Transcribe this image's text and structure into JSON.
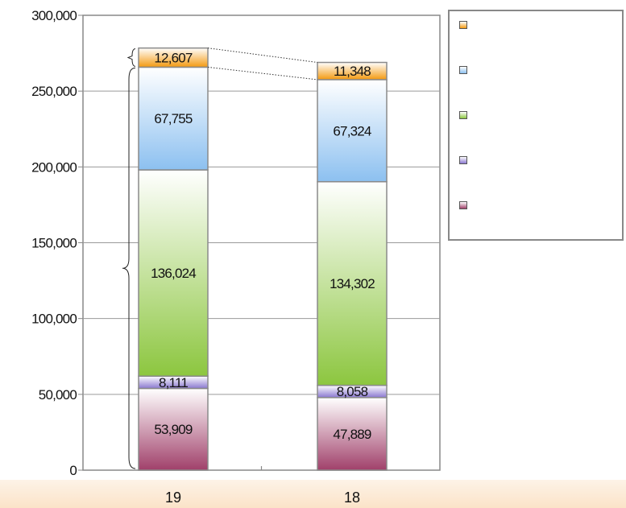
{
  "chart_data": {
    "type": "bar",
    "stacked": true,
    "categories": [
      "19",
      "18"
    ],
    "yticks": [
      "0",
      "50,000",
      "100,000",
      "150,000",
      "200,000",
      "250,000",
      "300,000"
    ],
    "ylim": [
      0,
      300000
    ],
    "grid": true,
    "legend_position": "right",
    "series": [
      {
        "values": [
          53909,
          47889
        ],
        "labels": [
          "53,909",
          "47,889"
        ],
        "color": "#a0406a"
      },
      {
        "values": [
          8111,
          8058
        ],
        "labels": [
          "8,111",
          "8,058"
        ],
        "color": "#8a78d0"
      },
      {
        "values": [
          136024,
          134302
        ],
        "labels": [
          "136,024",
          "134,302"
        ],
        "color": "#8cc63f"
      },
      {
        "values": [
          67755,
          67324
        ],
        "labels": [
          "67,755",
          "67,324"
        ],
        "color": "#8cc0f0"
      },
      {
        "values": [
          12607,
          11348
        ],
        "labels": [
          "12,607",
          "11,348"
        ],
        "color": "#f49a10"
      }
    ]
  }
}
